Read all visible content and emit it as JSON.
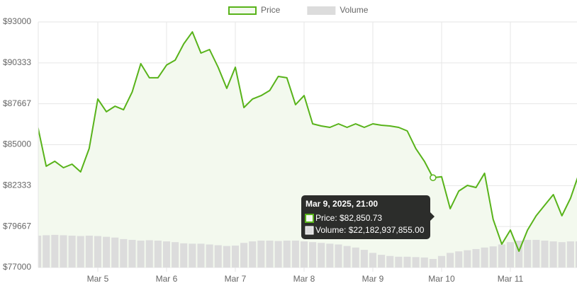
{
  "chart_data": {
    "type": "line",
    "categories": [
      null,
      null,
      null,
      null,
      null,
      null,
      null,
      "Mar 5",
      null,
      null,
      null,
      null,
      null,
      null,
      null,
      "Mar 6",
      null,
      null,
      null,
      null,
      null,
      null,
      null,
      "Mar 7",
      null,
      null,
      null,
      null,
      null,
      null,
      null,
      "Mar 8",
      null,
      null,
      null,
      null,
      null,
      null,
      null,
      "Mar 9",
      null,
      null,
      null,
      null,
      null,
      null,
      null,
      "Mar 10",
      null,
      null,
      null,
      null,
      null,
      null,
      null,
      "Mar 11",
      null,
      null,
      null,
      null,
      null,
      null,
      null,
      null
    ],
    "series": [
      {
        "name": "Price",
        "color": "#58b31a",
        "fill": "#f3f9ee",
        "values": [
          86220,
          83600,
          83920,
          83500,
          83730,
          83230,
          84750,
          87980,
          87150,
          87510,
          87280,
          88440,
          90280,
          89360,
          89360,
          90190,
          90510,
          91570,
          92350,
          90970,
          91200,
          90050,
          88670,
          90050,
          87420,
          87980,
          88200,
          88530,
          89450,
          89360,
          87610,
          88200,
          86360,
          86220,
          86130,
          86360,
          86130,
          86360,
          86130,
          86360,
          86270,
          86220,
          86130,
          85900,
          84750,
          83920,
          82850.73,
          82910,
          80830,
          81980,
          82350,
          82210,
          83140,
          80140,
          78520,
          79440,
          78060,
          79440,
          80370,
          81060,
          81750,
          80370,
          81520,
          83140
        ]
      },
      {
        "name": "Volume",
        "color": "#dcdcdc",
        "axis": "y2",
        "values": [
          83000000000,
          84000000000,
          85000000000,
          84000000000,
          83000000000,
          82000000000,
          83000000000,
          82000000000,
          80000000000,
          78000000000,
          74000000000,
          72000000000,
          70000000000,
          71000000000,
          70000000000,
          68000000000,
          66000000000,
          63000000000,
          62000000000,
          62000000000,
          60000000000,
          58000000000,
          56000000000,
          57000000000,
          64000000000,
          68000000000,
          70000000000,
          70000000000,
          69000000000,
          70000000000,
          70000000000,
          68000000000,
          66000000000,
          64000000000,
          62000000000,
          60000000000,
          56000000000,
          52000000000,
          46000000000,
          38000000000,
          33000000000,
          30000000000,
          28000000000,
          28000000000,
          27000000000,
          26000000000,
          22182937855,
          30000000000,
          38000000000,
          42000000000,
          45000000000,
          48000000000,
          52000000000,
          55000000000,
          60000000000,
          66000000000,
          70000000000,
          72000000000,
          72000000000,
          70000000000,
          68000000000,
          66000000000,
          68000000000,
          68000000000
        ]
      }
    ],
    "ylim": [
      77000,
      93000
    ],
    "yticks": [
      {
        "value": 93000,
        "label": "$93000"
      },
      {
        "value": 90333,
        "label": "$90333"
      },
      {
        "value": 87667,
        "label": "$87667"
      },
      {
        "value": 85000,
        "label": "$85000"
      },
      {
        "value": 82333,
        "label": "$82333"
      },
      {
        "value": 79667,
        "label": "$79667"
      },
      {
        "value": 77000,
        "label": "$77000"
      }
    ],
    "y2lim": [
      0,
      640000000000
    ],
    "grid": true,
    "legend": "top",
    "tooltip": {
      "index": 46,
      "title": "Mar 9, 2025, 21:00",
      "lines": [
        "Price: $82,850.73",
        "Volume: $22,182,937,855.00"
      ]
    }
  }
}
